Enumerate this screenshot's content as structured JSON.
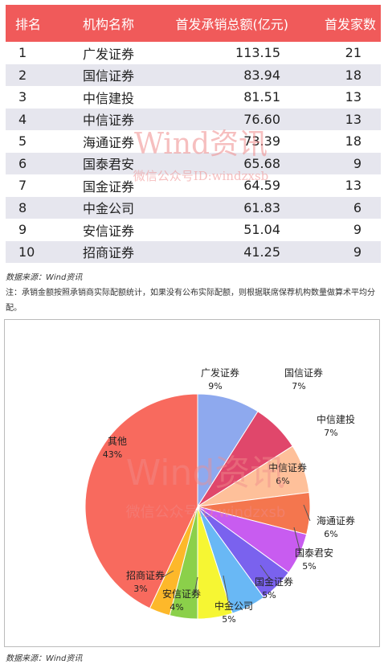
{
  "table": {
    "headers": [
      "排名",
      "机构名称",
      "首发承销总额(亿元)",
      "首发家数"
    ],
    "rows": [
      {
        "rank": "1",
        "name": "广发证券",
        "amount": "113.15",
        "count": "21"
      },
      {
        "rank": "2",
        "name": "国信证券",
        "amount": "83.94",
        "count": "18"
      },
      {
        "rank": "3",
        "name": "中信建投",
        "amount": "81.51",
        "count": "13"
      },
      {
        "rank": "4",
        "name": "中信证券",
        "amount": "76.60",
        "count": "13"
      },
      {
        "rank": "5",
        "name": "海通证券",
        "amount": "73.39",
        "count": "18"
      },
      {
        "rank": "6",
        "name": "国泰君安",
        "amount": "65.68",
        "count": "9"
      },
      {
        "rank": "7",
        "name": "国金证券",
        "amount": "64.59",
        "count": "13"
      },
      {
        "rank": "8",
        "name": "中金公司",
        "amount": "61.83",
        "count": "6"
      },
      {
        "rank": "9",
        "name": "安信证券",
        "amount": "51.04",
        "count": "9"
      },
      {
        "rank": "10",
        "name": "招商证券",
        "amount": "41.25",
        "count": "9"
      }
    ],
    "header_color": "#f05a5a",
    "stripe_color": "#e6e6ee"
  },
  "source_top": "数据来源：Wind资讯",
  "note": "注：承销金额按照承销商实际配额统计，如果没有公布实际配额，则根据联席保荐机构数量做算术平均分配。",
  "watermark": {
    "brand": "Wind资讯",
    "wechat": "微信公众号ID:windzxsb"
  },
  "source_bottom": "数据来源：Wind资讯",
  "chart_data": {
    "type": "pie",
    "slices": [
      {
        "label": "广发证券",
        "value": 9,
        "pct": "9%",
        "color": "#8ea9ee"
      },
      {
        "label": "国信证券",
        "value": 7,
        "pct": "7%",
        "color": "#e0476b"
      },
      {
        "label": "中信建投",
        "value": 7,
        "pct": "7%",
        "color": "#fec09a"
      },
      {
        "label": "中信证券",
        "value": 6,
        "pct": "6%",
        "color": "#f4764e"
      },
      {
        "label": "海通证券",
        "value": 6,
        "pct": "6%",
        "color": "#c85cf0"
      },
      {
        "label": "国泰君安",
        "value": 5,
        "pct": "5%",
        "color": "#7a62ee"
      },
      {
        "label": "国金证券",
        "value": 5,
        "pct": "5%",
        "color": "#69b8f5"
      },
      {
        "label": "中金公司",
        "value": 5,
        "pct": "5%",
        "color": "#f6f633"
      },
      {
        "label": "安信证券",
        "value": 4,
        "pct": "4%",
        "color": "#8bd04a"
      },
      {
        "label": "招商证券",
        "value": 3,
        "pct": "3%",
        "color": "#fdb82a"
      },
      {
        "label": "其他",
        "value": 43,
        "pct": "43%",
        "color": "#f86a5e"
      }
    ]
  }
}
